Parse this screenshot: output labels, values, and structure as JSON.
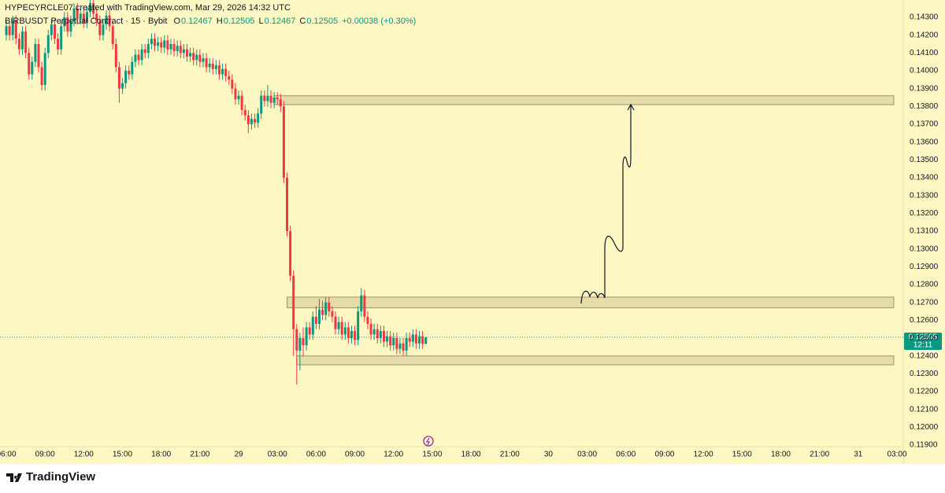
{
  "chart_data": {
    "type": "candlestick",
    "credit": "HYPECYRCLE07 created with TradingView.com, Mar 29, 2026 14:32 UTC",
    "symbol": "BIRBUSDT Perpetual Contract · 15 · Bybit",
    "readout": [
      {
        "label": "O",
        "value": "0.12467"
      },
      {
        "label": "H",
        "value": "0.12505"
      },
      {
        "label": "L",
        "value": "0.12467"
      },
      {
        "label": "C",
        "value": "0.12505"
      }
    ],
    "change": "+0.00038 (+0.30%)",
    "last_price_label": "0.12505",
    "countdown": "12:11",
    "brand": "TradingView",
    "up_color": "#089981",
    "down_color": "#f23645",
    "xlim": [
      0,
      276
    ],
    "ylim": [
      0.119,
      0.143
    ],
    "grid": false,
    "xticks": [
      {
        "value": 0,
        "label": "06:00"
      },
      {
        "value": 12,
        "label": "09:00"
      },
      {
        "value": 24,
        "label": "12:00"
      },
      {
        "value": 36,
        "label": "15:00"
      },
      {
        "value": 48,
        "label": "18:00"
      },
      {
        "value": 60,
        "label": "21:00"
      },
      {
        "value": 72,
        "label": "29"
      },
      {
        "value": 84,
        "label": "03:00"
      },
      {
        "value": 96,
        "label": "06:00"
      },
      {
        "value": 108,
        "label": "09:00"
      },
      {
        "value": 120,
        "label": "12:00"
      },
      {
        "value": 132,
        "label": "15:00"
      },
      {
        "value": 144,
        "label": "18:00"
      },
      {
        "value": 156,
        "label": "21:00"
      },
      {
        "value": 168,
        "label": "30"
      },
      {
        "value": 180,
        "label": "03:00"
      },
      {
        "value": 192,
        "label": "06:00"
      },
      {
        "value": 204,
        "label": "09:00"
      },
      {
        "value": 216,
        "label": "12:00"
      },
      {
        "value": 228,
        "label": "15:00"
      },
      {
        "value": 240,
        "label": "18:00"
      },
      {
        "value": 252,
        "label": "21:00"
      },
      {
        "value": 264,
        "label": "31"
      },
      {
        "value": 276,
        "label": "03:00"
      }
    ],
    "yticks": [
      {
        "value": 0.143,
        "label": "0.14300"
      },
      {
        "value": 0.142,
        "label": "0.14200"
      },
      {
        "value": 0.141,
        "label": "0.14100"
      },
      {
        "value": 0.14,
        "label": "0.14000"
      },
      {
        "value": 0.139,
        "label": "0.13900"
      },
      {
        "value": 0.138,
        "label": "0.13800"
      },
      {
        "value": 0.137,
        "label": "0.13700"
      },
      {
        "value": 0.136,
        "label": "0.13600"
      },
      {
        "value": 0.135,
        "label": "0.13500"
      },
      {
        "value": 0.134,
        "label": "0.13400"
      },
      {
        "value": 0.133,
        "label": "0.13300"
      },
      {
        "value": 0.132,
        "label": "0.13200"
      },
      {
        "value": 0.131,
        "label": "0.13100"
      },
      {
        "value": 0.13,
        "label": "0.13000"
      },
      {
        "value": 0.129,
        "label": "0.12900"
      },
      {
        "value": 0.128,
        "label": "0.12800"
      },
      {
        "value": 0.127,
        "label": "0.12700"
      },
      {
        "value": 0.126,
        "label": "0.12600"
      },
      {
        "value": 0.125,
        "label": "0.12500"
      },
      {
        "value": 0.124,
        "label": "0.12400"
      },
      {
        "value": 0.123,
        "label": "0.12300"
      },
      {
        "value": 0.122,
        "label": "0.12200"
      },
      {
        "value": 0.121,
        "label": "0.12100"
      },
      {
        "value": 0.12,
        "label": "0.12000"
      },
      {
        "value": 0.119,
        "label": "0.11900"
      }
    ],
    "zones": [
      {
        "low": 0.1381,
        "high": 0.1386,
        "start": 83,
        "end": 275
      },
      {
        "low": 0.1267,
        "high": 0.1273,
        "start": 87,
        "end": 275
      },
      {
        "low": 0.1235,
        "high": 0.124,
        "start": 90,
        "end": 275
      }
    ],
    "open": [
      0.142,
      0.1425,
      0.142,
      0.1428,
      0.1418,
      0.1412,
      0.1422,
      0.141,
      0.1398,
      0.1405,
      0.1415,
      0.1402,
      0.1392,
      0.141,
      0.142,
      0.1426,
      0.1418,
      0.1412,
      0.1425,
      0.143,
      0.1422,
      0.1428,
      0.1435,
      0.1429,
      0.1432,
      0.1427,
      0.1433,
      0.1438,
      0.1432,
      0.1428,
      0.142,
      0.1426,
      0.1431,
      0.1425,
      0.1415,
      0.1402,
      0.139,
      0.1393,
      0.14,
      0.1398,
      0.1405,
      0.1409,
      0.1406,
      0.1412,
      0.141,
      0.1415,
      0.1418,
      0.1414,
      0.1416,
      0.1413,
      0.1417,
      0.1412,
      0.1415,
      0.1411,
      0.1414,
      0.141,
      0.1412,
      0.1408,
      0.141,
      0.1406,
      0.1409,
      0.1405,
      0.1407,
      0.1402,
      0.1404,
      0.1401,
      0.1403,
      0.1398,
      0.1401,
      0.1397,
      0.1395,
      0.139,
      0.1384,
      0.1386,
      0.1378,
      0.1375,
      0.137,
      0.1373,
      0.1371,
      0.1376,
      0.1386,
      0.1383,
      0.1386,
      0.1382,
      0.1385,
      0.1384,
      0.138,
      0.134,
      0.131,
      0.1285,
      0.1255,
      0.1243,
      0.125,
      0.1246,
      0.1256,
      0.1252,
      0.1262,
      0.1258,
      0.1266,
      0.1263,
      0.127,
      0.1265,
      0.1262,
      0.1255,
      0.1259,
      0.1252,
      0.1256,
      0.125,
      0.1254,
      0.1249,
      0.1265,
      0.1274,
      0.1262,
      0.1258,
      0.1252,
      0.1255,
      0.125,
      0.1254,
      0.1248,
      0.1251,
      0.1246,
      0.125,
      0.1244,
      0.1247,
      0.1243,
      0.125,
      0.1248,
      0.1252,
      0.1247,
      0.1251,
      0.12467
    ],
    "high": [
      0.1428,
      0.1428,
      0.1431,
      0.1431,
      0.1421,
      0.1425,
      0.1425,
      0.1413,
      0.1408,
      0.1418,
      0.1418,
      0.1405,
      0.1413,
      0.1423,
      0.1429,
      0.1429,
      0.1421,
      0.1428,
      0.1433,
      0.1433,
      0.1431,
      0.1438,
      0.1438,
      0.1435,
      0.1435,
      0.1436,
      0.1441,
      0.1441,
      0.1435,
      0.1431,
      0.1429,
      0.1434,
      0.1434,
      0.1428,
      0.1418,
      0.1405,
      0.1396,
      0.1403,
      0.1403,
      0.1408,
      0.1412,
      0.1412,
      0.1415,
      0.1415,
      0.1418,
      0.1421,
      0.1421,
      0.1419,
      0.1419,
      0.142,
      0.142,
      0.1418,
      0.1418,
      0.1417,
      0.1417,
      0.1415,
      0.1415,
      0.1413,
      0.1413,
      0.1412,
      0.1412,
      0.141,
      0.141,
      0.1407,
      0.1407,
      0.1406,
      0.1406,
      0.1404,
      0.1404,
      0.14,
      0.1398,
      0.1393,
      0.1389,
      0.1389,
      0.1381,
      0.1378,
      0.1376,
      0.1376,
      0.1379,
      0.1389,
      0.1389,
      0.1392,
      0.1389,
      0.1388,
      0.1388,
      0.1387,
      0.1383,
      0.1343,
      0.1313,
      0.1288,
      0.1258,
      0.1253,
      0.1256,
      0.1259,
      0.1259,
      0.1265,
      0.1268,
      0.1272,
      0.1271,
      0.1273,
      0.1273,
      0.1268,
      0.1265,
      0.1262,
      0.1262,
      0.1259,
      0.1259,
      0.1257,
      0.1257,
      0.1268,
      0.1278,
      0.1277,
      0.1265,
      0.1261,
      0.1258,
      0.1258,
      0.1257,
      0.1257,
      0.1254,
      0.1254,
      0.1253,
      0.1253,
      0.125,
      0.125,
      0.1253,
      0.1253,
      0.1255,
      0.1255,
      0.1254,
      0.1254,
      0.12505
    ],
    "low": [
      0.1417,
      0.1417,
      0.1417,
      0.1415,
      0.1409,
      0.1409,
      0.1407,
      0.1395,
      0.1395,
      0.1402,
      0.1399,
      0.1389,
      0.1389,
      0.1407,
      0.1417,
      0.1415,
      0.1409,
      0.1409,
      0.1422,
      0.1419,
      0.1419,
      0.1425,
      0.1426,
      0.1426,
      0.1424,
      0.1424,
      0.143,
      0.1429,
      0.1425,
      0.1417,
      0.1417,
      0.1423,
      0.1422,
      0.1412,
      0.1399,
      0.1382,
      0.1387,
      0.139,
      0.1395,
      0.1395,
      0.1402,
      0.1403,
      0.1403,
      0.1407,
      0.1407,
      0.1412,
      0.1411,
      0.1411,
      0.141,
      0.141,
      0.1409,
      0.1409,
      0.1408,
      0.1408,
      0.1407,
      0.1407,
      0.1405,
      0.1405,
      0.1403,
      0.1403,
      0.1402,
      0.1402,
      0.1399,
      0.1399,
      0.1398,
      0.1398,
      0.1395,
      0.1395,
      0.1394,
      0.1392,
      0.1387,
      0.1381,
      0.1381,
      0.1375,
      0.1372,
      0.1365,
      0.1367,
      0.1368,
      0.1368,
      0.1373,
      0.138,
      0.138,
      0.1379,
      0.1379,
      0.1381,
      0.1377,
      0.1337,
      0.1307,
      0.1282,
      0.124,
      0.1224,
      0.1232,
      0.124,
      0.1243,
      0.1249,
      0.1249,
      0.1255,
      0.1255,
      0.126,
      0.126,
      0.1262,
      0.1259,
      0.1252,
      0.1252,
      0.1249,
      0.1249,
      0.1247,
      0.1247,
      0.1246,
      0.1246,
      0.1262,
      0.1259,
      0.1255,
      0.1249,
      0.1249,
      0.1247,
      0.1247,
      0.1245,
      0.1245,
      0.1243,
      0.1243,
      0.1241,
      0.1241,
      0.124,
      0.124,
      0.1245,
      0.1245,
      0.1244,
      0.1244,
      0.1244,
      0.12467
    ],
    "close": [
      0.1425,
      0.142,
      0.1428,
      0.1418,
      0.1412,
      0.1422,
      0.141,
      0.1398,
      0.1405,
      0.1415,
      0.1402,
      0.1392,
      0.141,
      0.142,
      0.1426,
      0.1418,
      0.1412,
      0.1425,
      0.143,
      0.1422,
      0.1428,
      0.1435,
      0.1429,
      0.1432,
      0.1427,
      0.1433,
      0.1438,
      0.1432,
      0.1428,
      0.142,
      0.1426,
      0.1431,
      0.1425,
      0.1415,
      0.1402,
      0.139,
      0.1393,
      0.14,
      0.1398,
      0.1405,
      0.1409,
      0.1406,
      0.1412,
      0.141,
      0.1415,
      0.1418,
      0.1414,
      0.1416,
      0.1413,
      0.1417,
      0.1412,
      0.1415,
      0.1411,
      0.1414,
      0.141,
      0.1412,
      0.1408,
      0.141,
      0.1406,
      0.1409,
      0.1405,
      0.1407,
      0.1402,
      0.1404,
      0.1401,
      0.1403,
      0.1398,
      0.1401,
      0.1397,
      0.1395,
      0.139,
      0.1384,
      0.1386,
      0.1378,
      0.1375,
      0.137,
      0.1373,
      0.1371,
      0.1376,
      0.1386,
      0.1383,
      0.1386,
      0.1382,
      0.1385,
      0.1384,
      0.138,
      0.134,
      0.131,
      0.1285,
      0.1255,
      0.1243,
      0.125,
      0.1246,
      0.1256,
      0.1252,
      0.1262,
      0.1258,
      0.1266,
      0.1263,
      0.127,
      0.1265,
      0.1262,
      0.1255,
      0.1259,
      0.1252,
      0.1256,
      0.125,
      0.1254,
      0.1249,
      0.1265,
      0.1274,
      0.1262,
      0.1258,
      0.1252,
      0.1255,
      0.125,
      0.1254,
      0.1248,
      0.1251,
      0.1246,
      0.125,
      0.1244,
      0.1247,
      0.1243,
      0.125,
      0.1248,
      0.1252,
      0.1247,
      0.1251,
      0.12467,
      0.12505
    ]
  }
}
